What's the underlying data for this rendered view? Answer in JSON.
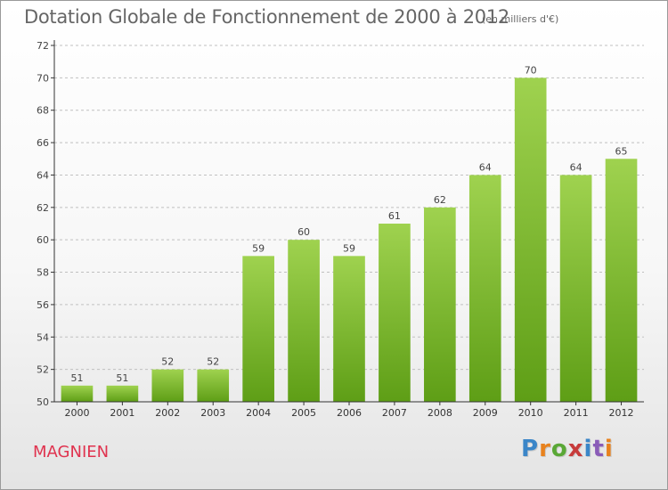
{
  "header": {
    "title": "Dotation Globale de Fonctionnement de 2000 à 2012",
    "subtitle": "(en milliers d'€)"
  },
  "footer": {
    "commune": "MAGNIEN",
    "logo": "Proxiti",
    "logo_colors": [
      "#3b86c8",
      "#e8821e",
      "#5aa836",
      "#c73b3b",
      "#3b86c8",
      "#8a5cb8",
      "#e8821e"
    ]
  },
  "colors": {
    "bar_top": "#9fd24f",
    "bar_bottom": "#5e9e16",
    "axis": "#333333",
    "grid": "#c0c0c0",
    "commune": "#e0334f"
  },
  "chart_data": {
    "type": "bar",
    "title": "Dotation Globale de Fonctionnement de 2000 à 2012",
    "subtitle": "(en milliers d'€)",
    "categories": [
      "2000",
      "2001",
      "2002",
      "2003",
      "2004",
      "2005",
      "2006",
      "2007",
      "2008",
      "2009",
      "2010",
      "2011",
      "2012"
    ],
    "values": [
      51,
      51,
      52,
      52,
      59,
      60,
      59,
      61,
      62,
      64,
      70,
      64,
      65
    ],
    "ylim": [
      50,
      72
    ],
    "yticks": [
      50,
      52,
      54,
      56,
      58,
      60,
      62,
      64,
      66,
      68,
      70,
      72
    ],
    "grid": true,
    "data_labels": true
  }
}
